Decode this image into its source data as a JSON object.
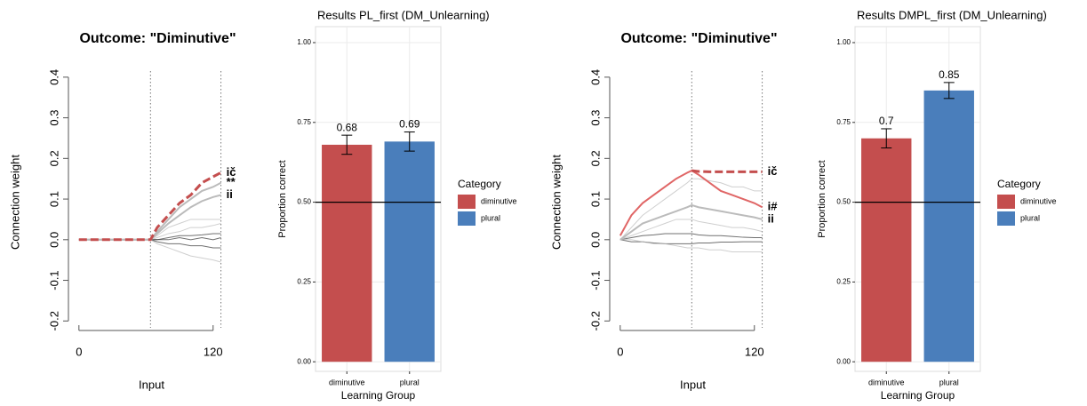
{
  "chart_data": [
    {
      "type": "line",
      "title": "Outcome: \"Diminutive\"",
      "xlabel": "Input",
      "ylabel": "Connection weight",
      "x": [
        0,
        10,
        20,
        30,
        40,
        50,
        60,
        64,
        70,
        80,
        90,
        100,
        110,
        120,
        127
      ],
      "xlim": [
        -7,
        148
      ],
      "ylim": [
        -0.23,
        0.415
      ],
      "xticks": [
        0,
        120
      ],
      "yticks": [
        -0.2,
        -0.1,
        {
          "value": 0,
          "label": "0.0"
        },
        0.1,
        0.2,
        0.3,
        0.4
      ],
      "vlines": [
        64,
        127
      ],
      "series": [
        {
          "color": "#333333",
          "values": [
            0,
            0,
            0,
            0,
            0,
            0,
            0,
            0,
            0,
            0.005,
            0.01,
            0.01,
            0.012,
            0.015,
            0.015
          ]
        },
        {
          "color": "#333333",
          "values": [
            0,
            0,
            0,
            0,
            0,
            0,
            0,
            0,
            -0.005,
            -0.01,
            -0.01,
            -0.015,
            -0.015,
            -0.02,
            -0.02
          ]
        },
        {
          "color": "#333333",
          "values": [
            0,
            0,
            0,
            0,
            0,
            0,
            0,
            0,
            0,
            0,
            0.005,
            0,
            0.005,
            0,
            0.005
          ]
        },
        {
          "color": "#bbbbbb",
          "values": [
            0,
            0,
            0,
            0,
            0,
            0,
            0,
            0,
            0.01,
            0.03,
            0.04,
            0.05,
            0.05,
            0.05,
            0.05
          ]
        },
        {
          "color": "#bbbbbb",
          "values": [
            0,
            0,
            0,
            0,
            0,
            0,
            0,
            0,
            0.005,
            0.015,
            0.02,
            0.03,
            0.03,
            0.035,
            0.04
          ]
        },
        {
          "color": "#bbbbbb",
          "values": [
            0,
            0,
            0,
            0,
            0,
            0,
            0,
            0,
            -0.01,
            -0.02,
            -0.03,
            -0.04,
            -0.045,
            -0.05,
            -0.055
          ]
        },
        {
          "name": "ii",
          "color": "#bbbbbb",
          "values": [
            0,
            0,
            0,
            0,
            0,
            0,
            0,
            0,
            0.015,
            0.04,
            0.06,
            0.08,
            0.095,
            0.105,
            0.11
          ]
        },
        {
          "name": "**",
          "color": "#bbbbbb",
          "values": [
            0,
            0,
            0,
            0,
            0,
            0,
            0,
            0,
            0.02,
            0.05,
            0.08,
            0.1,
            0.12,
            0.13,
            0.14
          ]
        },
        {
          "name": "ič",
          "color": "#c44e4e",
          "dashed": true,
          "values": [
            0,
            0,
            0,
            0,
            0,
            0,
            0,
            0,
            0.03,
            0.06,
            0.09,
            0.11,
            0.14,
            0.155,
            0.165
          ]
        }
      ]
    },
    {
      "type": "bar",
      "title": "Results PL_first (DM_Unlearning)",
      "xlabel": "Learning Group",
      "ylabel": "Proportion correct",
      "categories": [
        "diminutive",
        "plural"
      ],
      "values": [
        0.68,
        0.69
      ],
      "errors": [
        0.03,
        0.03
      ],
      "colors": [
        "#c44e4e",
        "#4a7ebb"
      ],
      "legend_title": "Category",
      "hline": 0.5,
      "grid": true,
      "ylim": [
        -0.03,
        1.05
      ],
      "yticks": [
        {
          "value": 0,
          "label": "0.00"
        },
        0.25,
        {
          "value": 0.5,
          "label": "0.50"
        },
        0.75,
        {
          "value": 1,
          "label": "1.00"
        }
      ]
    },
    {
      "type": "line",
      "title": "Outcome: \"Diminutive\"",
      "xlabel": "Input",
      "ylabel": "Connection weight",
      "x": [
        0,
        10,
        20,
        30,
        40,
        50,
        60,
        64,
        70,
        80,
        90,
        100,
        110,
        120,
        127
      ],
      "xlim": [
        -7,
        148
      ],
      "ylim": [
        -0.23,
        0.415
      ],
      "xticks": [
        0,
        120
      ],
      "yticks": [
        -0.2,
        -0.1,
        {
          "value": 0,
          "label": "0.0"
        },
        0.1,
        0.2,
        0.3,
        0.4
      ],
      "vlines": [
        64,
        127
      ],
      "series": [
        {
          "color": "#333333",
          "values": [
            0,
            0.005,
            0.01,
            0.012,
            0.015,
            0.015,
            0.015,
            0.015,
            0.012,
            0.01,
            0.01,
            0.008,
            0.006,
            0.005,
            0.005
          ]
        },
        {
          "color": "#333333",
          "values": [
            0,
            -0.005,
            -0.005,
            -0.008,
            -0.01,
            -0.01,
            -0.01,
            -0.01,
            -0.008,
            -0.008,
            -0.006,
            -0.006,
            -0.005,
            -0.005,
            -0.005
          ]
        },
        {
          "color": "#bbbbbb",
          "values": [
            0,
            0.03,
            0.06,
            0.08,
            0.1,
            0.12,
            0.14,
            0.15,
            0.15,
            0.145,
            0.14,
            0.13,
            0.13,
            0.12,
            0.12
          ]
        },
        {
          "color": "#bbbbbb",
          "values": [
            0,
            0.01,
            0.02,
            0.03,
            0.04,
            0.05,
            0.05,
            0.05,
            0.045,
            0.04,
            0.035,
            0.03,
            0.03,
            0.025,
            0.02
          ]
        },
        {
          "color": "#bbbbbb",
          "values": [
            0,
            0,
            -0.005,
            -0.01,
            -0.01,
            -0.015,
            -0.02,
            -0.02,
            -0.02,
            -0.025,
            -0.025,
            -0.03,
            -0.03,
            -0.03,
            -0.03
          ]
        },
        {
          "name": "ii",
          "color": "#bbbbbb",
          "values": [
            0,
            0.02,
            0.04,
            0.05,
            0.06,
            0.07,
            0.08,
            0.085,
            0.08,
            0.075,
            0.07,
            0.065,
            0.06,
            0.055,
            0.05
          ]
        },
        {
          "name": "i#",
          "color": "#e06666",
          "values": [
            0.01,
            0.06,
            0.09,
            0.11,
            0.13,
            0.15,
            0.165,
            0.17,
            0.16,
            0.14,
            0.12,
            0.11,
            0.1,
            0.09,
            0.08
          ]
        },
        {
          "name": "ič",
          "color": "#c44e4e",
          "dashed": true,
          "values": [
            null,
            null,
            null,
            null,
            null,
            null,
            null,
            0.17,
            0.168,
            0.167,
            0.167,
            0.167,
            0.167,
            0.167,
            0.167
          ]
        }
      ]
    },
    {
      "type": "bar",
      "title": "Results DMPL_first (DM_Unlearning)",
      "xlabel": "Learning Group",
      "ylabel": "Proportion correct",
      "categories": [
        "diminutive",
        "plural"
      ],
      "values": [
        0.7,
        0.85
      ],
      "errors": [
        0.03,
        0.025
      ],
      "colors": [
        "#c44e4e",
        "#4a7ebb"
      ],
      "legend_title": "Category",
      "hline": 0.5,
      "grid": true,
      "ylim": [
        -0.03,
        1.05
      ],
      "yticks": [
        {
          "value": 0,
          "label": "0.00"
        },
        0.25,
        {
          "value": 0.5,
          "label": "0.50"
        },
        0.75,
        {
          "value": 1,
          "label": "1.00"
        }
      ]
    }
  ]
}
